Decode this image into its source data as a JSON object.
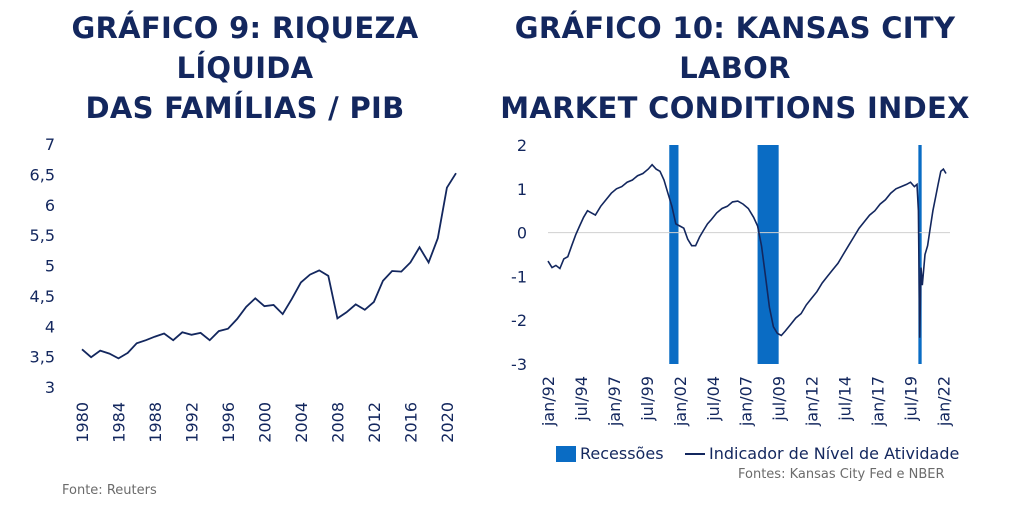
{
  "chart_data": [
    {
      "type": "line",
      "title": [
        "GRÁFICO 9: RIQUEZA LÍQUIDA",
        "DAS FAMÍLIAS / PIB"
      ],
      "source": "Fonte: Reuters",
      "xlabel": "",
      "ylabel": "",
      "xlim": [
        1980,
        2021
      ],
      "ylim": [
        3,
        7
      ],
      "x_ticks": [
        "1980",
        "1984",
        "1988",
        "1992",
        "1996",
        "2000",
        "2004",
        "2008",
        "2012",
        "2016",
        "2020"
      ],
      "y_ticks": [
        "3",
        "3,5",
        "4",
        "4,5",
        "5",
        "5,5",
        "6",
        "6,5",
        "7"
      ],
      "line_color": "#13275e",
      "series": [
        {
          "x": [
            1980,
            1981,
            1982,
            1983,
            1984,
            1985,
            1986,
            1987,
            1988,
            1989,
            1990,
            1991,
            1992,
            1993,
            1994,
            1995,
            1996,
            1997,
            1998,
            1999,
            2000,
            2001,
            2002,
            2003,
            2004,
            2005,
            2006,
            2007,
            2008,
            2009,
            2010,
            2011,
            2012,
            2013,
            2014,
            2015,
            2016,
            2017,
            2018,
            2019,
            2020,
            2021
          ],
          "values": [
            3.62,
            3.49,
            3.6,
            3.55,
            3.47,
            3.56,
            3.72,
            3.77,
            3.83,
            3.88,
            3.77,
            3.9,
            3.86,
            3.89,
            3.77,
            3.92,
            3.96,
            4.12,
            4.32,
            4.46,
            4.33,
            4.35,
            4.2,
            4.45,
            4.72,
            4.85,
            4.92,
            4.83,
            4.13,
            4.23,
            4.36,
            4.27,
            4.4,
            4.75,
            4.91,
            4.9,
            5.05,
            5.3,
            5.05,
            5.45,
            6.28,
            6.52
          ]
        }
      ]
    },
    {
      "type": "line",
      "title": [
        "GRÁFICO 10: KANSAS CITY LABOR",
        "MARKET CONDITIONS INDEX"
      ],
      "source": "Fontes: Kansas City Fed e NBER",
      "xlabel": "",
      "ylabel": "",
      "xlim": [
        1992.0,
        2022.5
      ],
      "ylim": [
        -3,
        2
      ],
      "x_ticks": [
        {
          "label": "jan/92",
          "x": 1992.0
        },
        {
          "label": "jul/94",
          "x": 1994.5
        },
        {
          "label": "jan/97",
          "x": 1997.0
        },
        {
          "label": "jul/99",
          "x": 1999.5
        },
        {
          "label": "jan/02",
          "x": 2002.0
        },
        {
          "label": "jul/04",
          "x": 2004.5
        },
        {
          "label": "jan/07",
          "x": 2007.0
        },
        {
          "label": "jul/09",
          "x": 2009.5
        },
        {
          "label": "jan/12",
          "x": 2012.0
        },
        {
          "label": "jul/14",
          "x": 2014.5
        },
        {
          "label": "jan/17",
          "x": 2017.0
        },
        {
          "label": "jul/19",
          "x": 2019.5
        },
        {
          "label": "jan/22",
          "x": 2022.0
        }
      ],
      "y_ticks": [
        "2",
        "1",
        "0",
        "-1",
        "-2",
        "-3"
      ],
      "recession_color": "#0a6cc4",
      "line_color": "#13275e",
      "recessions": [
        {
          "start": 2001.2,
          "end": 2001.9
        },
        {
          "start": 2007.9,
          "end": 2009.5
        },
        {
          "start": 2020.1,
          "end": 2020.35
        }
      ],
      "series": [
        {
          "name": "Indicador de Nível de Atividade",
          "x": [
            1992.0,
            1992.3,
            1992.6,
            1992.9,
            1993.2,
            1993.5,
            1993.8,
            1994.1,
            1994.4,
            1994.7,
            1995.0,
            1995.3,
            1995.6,
            1996.0,
            1996.4,
            1996.8,
            1997.2,
            1997.6,
            1998.0,
            1998.4,
            1998.8,
            1999.2,
            1999.6,
            1999.9,
            2000.2,
            2000.5,
            2000.8,
            2001.1,
            2001.4,
            2001.7,
            2002.0,
            2002.3,
            2002.6,
            2002.9,
            2003.2,
            2003.5,
            2003.8,
            2004.1,
            2004.4,
            2004.8,
            2005.2,
            2005.6,
            2006.0,
            2006.4,
            2006.8,
            2007.2,
            2007.6,
            2007.9,
            2008.2,
            2008.5,
            2008.8,
            2009.1,
            2009.4,
            2009.7,
            2010.0,
            2010.4,
            2010.8,
            2011.2,
            2011.6,
            2012.0,
            2012.4,
            2012.8,
            2013.2,
            2013.6,
            2014.0,
            2014.4,
            2014.8,
            2015.2,
            2015.6,
            2016.0,
            2016.4,
            2016.8,
            2017.2,
            2017.6,
            2018.0,
            2018.4,
            2018.8,
            2019.2,
            2019.5,
            2019.8,
            2020.0,
            2020.1,
            2020.2,
            2020.3,
            2020.4,
            2020.6,
            2020.8,
            2021.0,
            2021.2,
            2021.4,
            2021.6,
            2021.8,
            2022.0,
            2022.2
          ],
          "values": [
            -0.65,
            -0.8,
            -0.75,
            -0.82,
            -0.6,
            -0.55,
            -0.3,
            -0.05,
            0.15,
            0.35,
            0.5,
            0.45,
            0.4,
            0.6,
            0.75,
            0.9,
            1.0,
            1.05,
            1.15,
            1.2,
            1.3,
            1.35,
            1.45,
            1.55,
            1.45,
            1.4,
            1.2,
            0.9,
            0.6,
            0.2,
            0.15,
            0.1,
            -0.15,
            -0.3,
            -0.3,
            -0.1,
            0.05,
            0.2,
            0.3,
            0.45,
            0.55,
            0.6,
            0.7,
            0.72,
            0.65,
            0.55,
            0.35,
            0.15,
            -0.3,
            -1.0,
            -1.7,
            -2.15,
            -2.3,
            -2.35,
            -2.25,
            -2.1,
            -1.95,
            -1.85,
            -1.65,
            -1.5,
            -1.35,
            -1.15,
            -1.0,
            -0.85,
            -0.7,
            -0.5,
            -0.3,
            -0.1,
            0.1,
            0.25,
            0.4,
            0.5,
            0.65,
            0.75,
            0.9,
            1.0,
            1.05,
            1.1,
            1.15,
            1.05,
            1.1,
            0.5,
            -2.4,
            -0.8,
            -1.2,
            -0.5,
            -0.3,
            0.1,
            0.5,
            0.8,
            1.1,
            1.4,
            1.45,
            1.35
          ]
        }
      ],
      "legend": {
        "recession_label": "Recessões",
        "line_label": "Indicador de Nível de Atividade"
      }
    }
  ]
}
